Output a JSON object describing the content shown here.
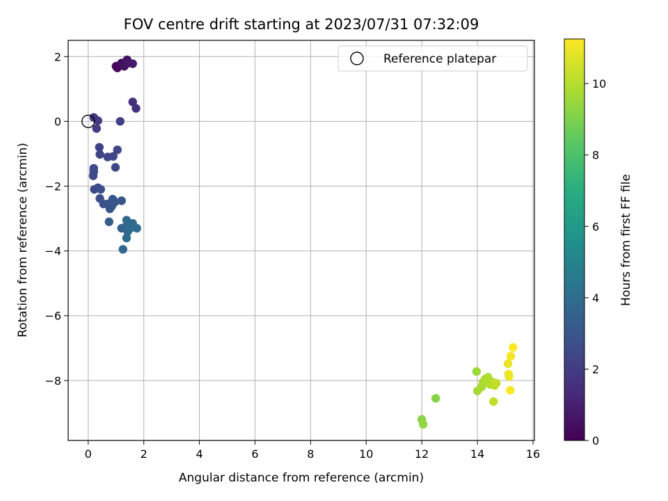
{
  "chart_data": {
    "type": "scatter",
    "title": "FOV centre drift starting at 2023/07/31 07:32:09",
    "xlabel": "Angular distance from reference (arcmin)",
    "ylabel": "Rotation from reference (arcmin)",
    "xlim": [
      -0.72,
      16.05
    ],
    "ylim": [
      -9.85,
      2.5
    ],
    "xticks": [
      0,
      2,
      4,
      6,
      8,
      10,
      12,
      14,
      16
    ],
    "yticks": [
      2,
      0,
      -2,
      -4,
      -6,
      -8
    ],
    "grid": true,
    "legend": {
      "placement": "top-right",
      "entries": [
        "Reference platepar"
      ]
    },
    "reference_point": {
      "x": 0,
      "y": 0
    },
    "colorbar": {
      "label": "Hours from first FF file",
      "range": [
        0,
        11.25
      ],
      "ticks": [
        0,
        2,
        4,
        6,
        8,
        10
      ],
      "colormap": "viridis"
    },
    "points": [
      {
        "x": 1.0,
        "y": 1.7,
        "t": 0.1
      },
      {
        "x": 1.05,
        "y": 1.65,
        "t": 0.2
      },
      {
        "x": 1.1,
        "y": 1.72,
        "t": 0.3
      },
      {
        "x": 1.2,
        "y": 1.8,
        "t": 0.4
      },
      {
        "x": 1.3,
        "y": 1.7,
        "t": 0.5
      },
      {
        "x": 1.4,
        "y": 1.9,
        "t": 0.6
      },
      {
        "x": 1.45,
        "y": 1.8,
        "t": 0.7
      },
      {
        "x": 1.6,
        "y": 1.78,
        "t": 0.8
      },
      {
        "x": 1.6,
        "y": 0.6,
        "t": 1.5
      },
      {
        "x": 1.72,
        "y": 0.4,
        "t": 1.6
      },
      {
        "x": 0.2,
        "y": 0.12,
        "t": 1.8
      },
      {
        "x": 0.35,
        "y": 0.02,
        "t": 1.9
      },
      {
        "x": 0.3,
        "y": -0.22,
        "t": 2.0
      },
      {
        "x": 1.15,
        "y": 0.0,
        "t": 2.1
      },
      {
        "x": 0.4,
        "y": -0.8,
        "t": 2.2
      },
      {
        "x": 0.42,
        "y": -1.02,
        "t": 2.3
      },
      {
        "x": 0.7,
        "y": -1.1,
        "t": 2.3
      },
      {
        "x": 0.9,
        "y": -1.08,
        "t": 2.4
      },
      {
        "x": 1.05,
        "y": -0.88,
        "t": 2.4
      },
      {
        "x": 0.98,
        "y": -1.42,
        "t": 2.4
      },
      {
        "x": 0.2,
        "y": -1.45,
        "t": 2.5
      },
      {
        "x": 0.2,
        "y": -1.55,
        "t": 2.5
      },
      {
        "x": 0.18,
        "y": -1.68,
        "t": 2.5
      },
      {
        "x": 0.22,
        "y": -2.1,
        "t": 2.6
      },
      {
        "x": 0.35,
        "y": -2.05,
        "t": 2.6
      },
      {
        "x": 0.45,
        "y": -2.1,
        "t": 2.7
      },
      {
        "x": 0.42,
        "y": -2.38,
        "t": 2.7
      },
      {
        "x": 0.55,
        "y": -2.55,
        "t": 2.8
      },
      {
        "x": 0.7,
        "y": -2.55,
        "t": 2.8
      },
      {
        "x": 0.78,
        "y": -2.7,
        "t": 2.9
      },
      {
        "x": 0.85,
        "y": -2.62,
        "t": 2.9
      },
      {
        "x": 0.88,
        "y": -2.4,
        "t": 3.0
      },
      {
        "x": 0.95,
        "y": -2.5,
        "t": 3.0
      },
      {
        "x": 0.92,
        "y": -2.45,
        "t": 3.0
      },
      {
        "x": 1.2,
        "y": -2.45,
        "t": 3.0
      },
      {
        "x": 0.75,
        "y": -3.1,
        "t": 3.3
      },
      {
        "x": 1.2,
        "y": -3.3,
        "t": 3.5
      },
      {
        "x": 1.3,
        "y": -3.28,
        "t": 3.6
      },
      {
        "x": 1.38,
        "y": -3.05,
        "t": 3.7
      },
      {
        "x": 1.48,
        "y": -3.2,
        "t": 3.8
      },
      {
        "x": 1.42,
        "y": -3.4,
        "t": 3.8
      },
      {
        "x": 1.55,
        "y": -3.22,
        "t": 3.9
      },
      {
        "x": 1.6,
        "y": -3.15,
        "t": 3.9
      },
      {
        "x": 1.52,
        "y": -3.3,
        "t": 4.0
      },
      {
        "x": 1.75,
        "y": -3.3,
        "t": 4.0
      },
      {
        "x": 1.38,
        "y": -3.6,
        "t": 3.9
      },
      {
        "x": 1.25,
        "y": -3.95,
        "t": 3.7
      },
      {
        "x": 12.0,
        "y": -9.2,
        "t": 9.3
      },
      {
        "x": 12.05,
        "y": -9.35,
        "t": 9.4
      },
      {
        "x": 12.5,
        "y": -8.55,
        "t": 9.2
      },
      {
        "x": 13.97,
        "y": -7.72,
        "t": 9.6
      },
      {
        "x": 14.0,
        "y": -8.32,
        "t": 9.7
      },
      {
        "x": 14.15,
        "y": -8.2,
        "t": 9.8
      },
      {
        "x": 14.2,
        "y": -8.05,
        "t": 9.8
      },
      {
        "x": 14.28,
        "y": -7.95,
        "t": 9.9
      },
      {
        "x": 14.38,
        "y": -7.9,
        "t": 9.9
      },
      {
        "x": 14.45,
        "y": -8.12,
        "t": 10.0
      },
      {
        "x": 14.55,
        "y": -8.05,
        "t": 10.0
      },
      {
        "x": 14.62,
        "y": -8.15,
        "t": 10.1
      },
      {
        "x": 14.58,
        "y": -8.65,
        "t": 10.2
      },
      {
        "x": 14.68,
        "y": -8.08,
        "t": 10.2
      },
      {
        "x": 15.1,
        "y": -7.48,
        "t": 10.9
      },
      {
        "x": 15.12,
        "y": -7.8,
        "t": 11.0
      },
      {
        "x": 15.14,
        "y": -7.88,
        "t": 11.0
      },
      {
        "x": 15.2,
        "y": -7.25,
        "t": 11.1
      },
      {
        "x": 15.28,
        "y": -6.98,
        "t": 11.2
      },
      {
        "x": 15.18,
        "y": -8.3,
        "t": 11.2
      }
    ]
  }
}
